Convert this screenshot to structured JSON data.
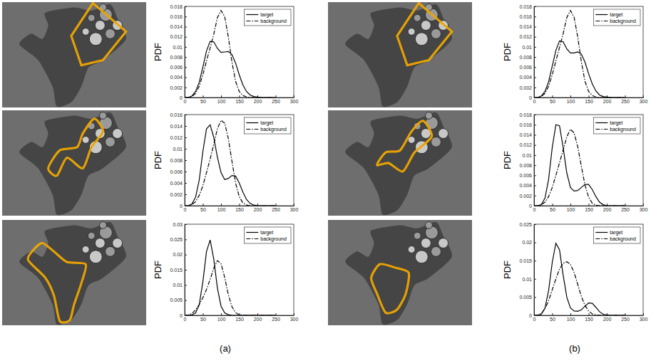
{
  "chart_data": [
    {
      "type": "line",
      "y_label": "PDF",
      "x": [
        0,
        10,
        20,
        30,
        40,
        50,
        60,
        70,
        80,
        90,
        100,
        110,
        120,
        130,
        140,
        150,
        160,
        170,
        180,
        190,
        200,
        210,
        220,
        230,
        240,
        250
      ],
      "xlim": [
        0,
        300
      ],
      "xticks": [
        0,
        50,
        100,
        150,
        200,
        250,
        300
      ],
      "ylim": [
        0,
        0.018
      ],
      "yticks": [
        0,
        0.002,
        0.004,
        0.006,
        0.008,
        0.01,
        0.012,
        0.014,
        0.016,
        0.018
      ],
      "legend": "northeast",
      "grid": false,
      "series": [
        {
          "name": "target",
          "color": "#000000",
          "line_style": "solid",
          "values": [
            0,
            0,
            0.0003,
            0.0012,
            0.003,
            0.006,
            0.0092,
            0.0111,
            0.011,
            0.0097,
            0.0089,
            0.009,
            0.0091,
            0.0085,
            0.0068,
            0.0045,
            0.0025,
            0.0012,
            0.0005,
            0.0002,
            0.0001,
            0,
            0,
            0,
            0,
            0
          ]
        },
        {
          "name": "background",
          "color": "#000000",
          "line_style": "dashdot",
          "values": [
            0,
            0,
            0.0002,
            0.0008,
            0.0022,
            0.0045,
            0.0072,
            0.0098,
            0.0125,
            0.0158,
            0.0172,
            0.016,
            0.012,
            0.007,
            0.0032,
            0.0012,
            0.0004,
            0.0001,
            0,
            0,
            0,
            0,
            0,
            0,
            0,
            0
          ]
        }
      ]
    },
    {
      "type": "line",
      "y_label": "PDF",
      "x": [
        0,
        10,
        20,
        30,
        40,
        50,
        60,
        70,
        80,
        90,
        100,
        110,
        120,
        130,
        140,
        150,
        160,
        170,
        180,
        190,
        200,
        210,
        220,
        230,
        240,
        250
      ],
      "xlim": [
        0,
        300
      ],
      "xticks": [
        0,
        50,
        100,
        150,
        200,
        250,
        300
      ],
      "ylim": [
        0,
        0.016
      ],
      "yticks": [
        0,
        0.002,
        0.004,
        0.006,
        0.008,
        0.01,
        0.012,
        0.014,
        0.016
      ],
      "legend": "northeast",
      "grid": false,
      "series": [
        {
          "name": "target",
          "color": "#000000",
          "line_style": "solid",
          "values": [
            0,
            0,
            0.0003,
            0.0015,
            0.0045,
            0.0095,
            0.0135,
            0.0142,
            0.012,
            0.0085,
            0.0058,
            0.0046,
            0.0048,
            0.0053,
            0.0052,
            0.004,
            0.0024,
            0.0011,
            0.0004,
            0.0001,
            0,
            0,
            0,
            0,
            0,
            0
          ]
        },
        {
          "name": "background",
          "color": "#000000",
          "line_style": "dashdot",
          "values": [
            0,
            0,
            0.0002,
            0.0007,
            0.0018,
            0.0035,
            0.0058,
            0.0082,
            0.0108,
            0.0135,
            0.015,
            0.0145,
            0.0118,
            0.0078,
            0.004,
            0.0016,
            0.0005,
            0.0001,
            0,
            0,
            0,
            0,
            0,
            0,
            0,
            0
          ]
        }
      ]
    },
    {
      "type": "line",
      "y_label": "PDF",
      "x": [
        0,
        10,
        20,
        30,
        40,
        50,
        60,
        70,
        80,
        90,
        100,
        110,
        120,
        130,
        140,
        150,
        160,
        170,
        180,
        190,
        200,
        210,
        220,
        230,
        240,
        250
      ],
      "xlim": [
        0,
        300
      ],
      "xticks": [
        0,
        50,
        100,
        150,
        200,
        250,
        300
      ],
      "ylim": [
        0,
        0.03
      ],
      "yticks": [
        0,
        0.005,
        0.01,
        0.015,
        0.02,
        0.025,
        0.03
      ],
      "legend": "northeast",
      "grid": false,
      "series": [
        {
          "name": "target",
          "color": "#000000",
          "line_style": "solid",
          "values": [
            0,
            0,
            0.0001,
            0.0008,
            0.0035,
            0.011,
            0.021,
            0.0248,
            0.0185,
            0.009,
            0.003,
            0.0008,
            0.0002,
            0,
            0,
            0,
            0,
            0,
            0,
            0,
            0,
            0,
            0,
            0,
            0,
            0
          ]
        },
        {
          "name": "background",
          "color": "#000000",
          "line_style": "dashdot",
          "values": [
            0,
            0.0001,
            0.0006,
            0.0018,
            0.0035,
            0.0058,
            0.0085,
            0.0118,
            0.0155,
            0.018,
            0.017,
            0.0125,
            0.0068,
            0.0028,
            0.0009,
            0.0002,
            0,
            0,
            0,
            0,
            0,
            0,
            0,
            0,
            0,
            0
          ]
        }
      ]
    },
    {
      "type": "line",
      "y_label": "PDF",
      "x": [
        0,
        10,
        20,
        30,
        40,
        50,
        60,
        70,
        80,
        90,
        100,
        110,
        120,
        130,
        140,
        150,
        160,
        170,
        180,
        190,
        200,
        210,
        220,
        230,
        240,
        250
      ],
      "xlim": [
        0,
        300
      ],
      "xticks": [
        0,
        50,
        100,
        150,
        200,
        250,
        300
      ],
      "ylim": [
        0,
        0.018
      ],
      "yticks": [
        0,
        0.002,
        0.004,
        0.006,
        0.008,
        0.01,
        0.012,
        0.014,
        0.016,
        0.018
      ],
      "legend": "northeast",
      "grid": false,
      "series": [
        {
          "name": "target",
          "color": "#000000",
          "line_style": "solid",
          "values": [
            0,
            0,
            0.0003,
            0.0012,
            0.0031,
            0.0062,
            0.0093,
            0.0112,
            0.011,
            0.0096,
            0.0088,
            0.0088,
            0.009,
            0.0086,
            0.007,
            0.0047,
            0.0027,
            0.0013,
            0.0005,
            0.0002,
            0.0001,
            0,
            0,
            0,
            0,
            0
          ]
        },
        {
          "name": "background",
          "color": "#000000",
          "line_style": "dashdot",
          "values": [
            0,
            0,
            0.0002,
            0.0008,
            0.0022,
            0.0045,
            0.0072,
            0.0099,
            0.0126,
            0.0158,
            0.0172,
            0.0159,
            0.012,
            0.0071,
            0.0032,
            0.0012,
            0.0004,
            0.0001,
            0,
            0,
            0,
            0,
            0,
            0,
            0,
            0
          ]
        }
      ]
    },
    {
      "type": "line",
      "y_label": "PDF",
      "x": [
        0,
        10,
        20,
        30,
        40,
        50,
        60,
        70,
        80,
        90,
        100,
        110,
        120,
        130,
        140,
        150,
        160,
        170,
        180,
        190,
        200,
        210,
        220,
        230,
        240,
        250
      ],
      "xlim": [
        0,
        300
      ],
      "xticks": [
        0,
        50,
        100,
        150,
        200,
        250,
        300
      ],
      "ylim": [
        0,
        0.018
      ],
      "yticks": [
        0,
        0.002,
        0.004,
        0.006,
        0.008,
        0.01,
        0.012,
        0.014,
        0.016,
        0.018
      ],
      "legend": "northeast",
      "grid": false,
      "series": [
        {
          "name": "target",
          "color": "#000000",
          "line_style": "solid",
          "values": [
            0,
            0,
            0.0002,
            0.0015,
            0.0052,
            0.0115,
            0.016,
            0.0158,
            0.0115,
            0.0065,
            0.0036,
            0.0029,
            0.003,
            0.0036,
            0.0042,
            0.0042,
            0.0032,
            0.0018,
            0.0007,
            0.0002,
            0,
            0,
            0,
            0,
            0,
            0
          ]
        },
        {
          "name": "background",
          "color": "#000000",
          "line_style": "dashdot",
          "values": [
            0,
            0,
            0.0002,
            0.0007,
            0.0018,
            0.0036,
            0.006,
            0.0085,
            0.011,
            0.0136,
            0.0151,
            0.0144,
            0.0117,
            0.0078,
            0.0041,
            0.0017,
            0.0005,
            0.0001,
            0,
            0,
            0,
            0,
            0,
            0,
            0,
            0
          ]
        }
      ]
    },
    {
      "type": "line",
      "y_label": "PDF",
      "x": [
        0,
        10,
        20,
        30,
        40,
        50,
        60,
        70,
        80,
        90,
        100,
        110,
        120,
        130,
        140,
        150,
        160,
        170,
        180,
        190,
        200,
        210,
        220,
        230,
        240,
        250
      ],
      "xlim": [
        0,
        300
      ],
      "xticks": [
        0,
        50,
        100,
        150,
        200,
        250,
        300
      ],
      "ylim": [
        0,
        0.025
      ],
      "yticks": [
        0,
        0.005,
        0.01,
        0.015,
        0.02,
        0.025
      ],
      "legend": "northeast",
      "grid": false,
      "series": [
        {
          "name": "target",
          "color": "#000000",
          "line_style": "solid",
          "values": [
            0,
            0,
            0.0003,
            0.002,
            0.0068,
            0.0145,
            0.0198,
            0.018,
            0.011,
            0.005,
            0.002,
            0.0012,
            0.0011,
            0.0015,
            0.0025,
            0.0034,
            0.0033,
            0.0022,
            0.001,
            0.0003,
            0.0001,
            0,
            0,
            0,
            0,
            0
          ]
        },
        {
          "name": "background",
          "color": "#000000",
          "line_style": "dashdot",
          "values": [
            0,
            0.0001,
            0.0005,
            0.0018,
            0.004,
            0.007,
            0.01,
            0.0127,
            0.0143,
            0.0147,
            0.014,
            0.0118,
            0.0085,
            0.0052,
            0.0027,
            0.0012,
            0.0004,
            0.0001,
            0,
            0,
            0,
            0,
            0,
            0,
            0,
            0
          ]
        }
      ]
    }
  ],
  "panel_labels": [
    "(a)",
    "(b)"
  ]
}
